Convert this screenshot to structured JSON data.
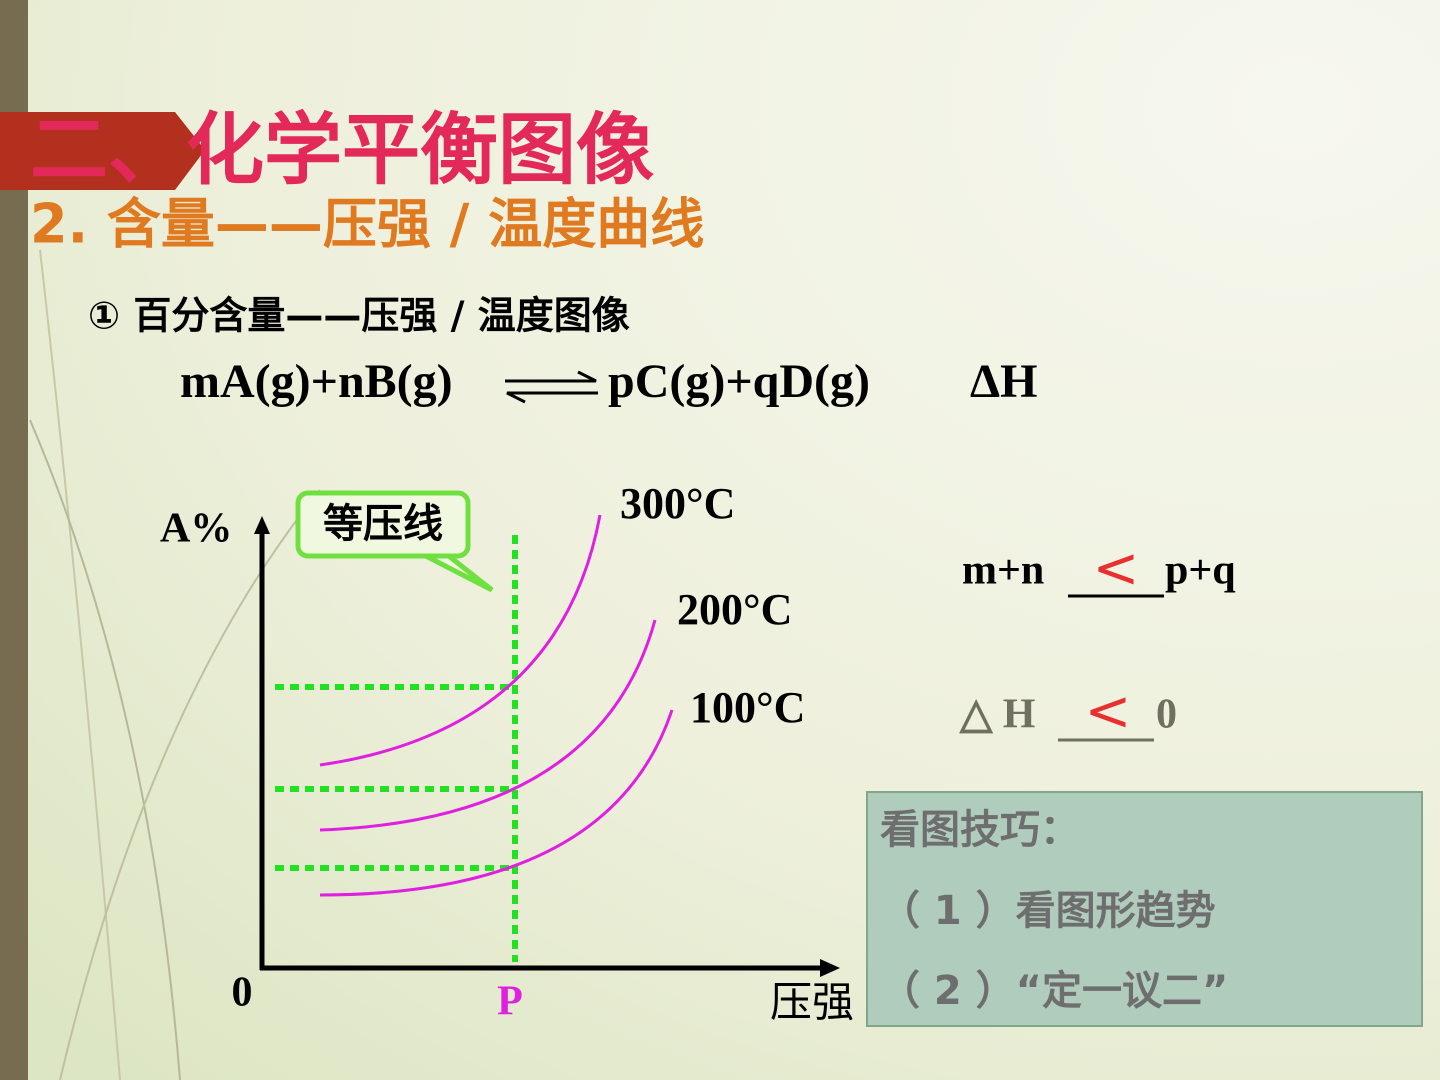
{
  "title": "二、化学平衡图像",
  "subtitle": "2.  含量——压强 / 温度曲线",
  "heading": "① 百分含量——压强 / 温度图像",
  "equation": {
    "left": "mA(g)+nB(g)",
    "right": "pC(g)+qD(g)",
    "enthalpy": "ΔH"
  },
  "diagram": {
    "y_label": "A%",
    "x_label": "压强",
    "origin": "0",
    "p_label": "P",
    "callout": "等压线",
    "curve_labels": [
      "300°C",
      "200°C",
      "100°C"
    ]
  },
  "answers": [
    {
      "left": "m+n",
      "answer": "<",
      "right": "p+q"
    },
    {
      "left": "△ H",
      "answer": "<",
      "right": "0"
    }
  ],
  "tips": {
    "title": "看图技巧：",
    "items": [
      "（ 1 ）看图形趋势",
      "（ 2 ）“定一议二”"
    ]
  }
}
